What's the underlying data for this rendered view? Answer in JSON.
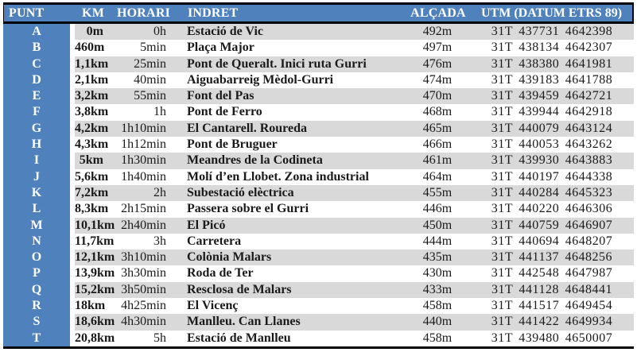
{
  "table": {
    "columns": {
      "punt": {
        "label": "PUNT"
      },
      "km": {
        "label": "KM"
      },
      "horari": {
        "label": "HORARI"
      },
      "indret": {
        "label": "INDRET"
      },
      "alcada": {
        "label": "ALÇADA"
      },
      "utm": {
        "label": "UTM (DATUM ETRS 89)"
      }
    },
    "rows": [
      {
        "punt": "A",
        "km": "0m",
        "horari": "0h",
        "indret": "Estació de Vic",
        "alcada": "492m",
        "utm": "31T 437731 4642398"
      },
      {
        "punt": "B",
        "km": "460m",
        "horari": "5min",
        "indret": "Plaça Major",
        "alcada": "497m",
        "utm": "31T 438134 4642307"
      },
      {
        "punt": "C",
        "km": "1,1km",
        "horari": "25min",
        "indret": "Pont de Queralt. Inici ruta Gurri",
        "alcada": "476m",
        "utm": "31T 438380 4641981"
      },
      {
        "punt": "D",
        "km": "2,1km",
        "horari": "40min",
        "indret": "Aiguabarreig Mèdol-Gurri",
        "alcada": "474m",
        "utm": "31T 439183 4641788"
      },
      {
        "punt": "E",
        "km": "3,2km",
        "horari": "55min",
        "indret": "Font del Pas",
        "alcada": "470m",
        "utm": "31T 439459 4642721"
      },
      {
        "punt": "F",
        "km": "3,8km",
        "horari": "1h",
        "indret": "Pont de Ferro",
        "alcada": "468m",
        "utm": "31T 439944 4642918"
      },
      {
        "punt": "G",
        "km": "4,2km",
        "horari": "1h10min",
        "indret": "El Cantarell. Roureda",
        "alcada": "465m",
        "utm": "31T 440079 4643124"
      },
      {
        "punt": "H",
        "km": "4,3km",
        "horari": "1h12min",
        "indret": "Pont de Bruguer",
        "alcada": "466m",
        "utm": "31T 440053 4643262"
      },
      {
        "punt": "I",
        "km": "5km",
        "horari": "1h30min",
        "indret": "Meandres de la Codineta",
        "alcada": "461m",
        "utm": "31T 439930 4643883"
      },
      {
        "punt": "J",
        "km": "5,6km",
        "horari": "1h40min",
        "indret": "Molí d’en Llobet. Zona industrial",
        "alcada": "464m",
        "utm": "31T 440197 4644338"
      },
      {
        "punt": "K",
        "km": "7,2km",
        "horari": "2h",
        "indret": "Subestació elèctrica",
        "alcada": "455m",
        "utm": "31T 440284 4645323"
      },
      {
        "punt": "L",
        "km": "8,3km",
        "horari": "2h15min",
        "indret": "Passera sobre el Gurri",
        "alcada": "446m",
        "utm": "31T 440220 4646306"
      },
      {
        "punt": "M",
        "km": "10,1km",
        "horari": "2h40min",
        "indret": "El Picó",
        "alcada": "450m",
        "utm": "31T 440759 4646907"
      },
      {
        "punt": "N",
        "km": "11,7km",
        "horari": "3h",
        "indret": "Carretera",
        "alcada": "444m",
        "utm": "31T 440694 4648207"
      },
      {
        "punt": "O",
        "km": "12,1km",
        "horari": "3h10min",
        "indret": "Colònia Malars",
        "alcada": "435m",
        "utm": "31T 441137 4648256"
      },
      {
        "punt": "P",
        "km": "13,9km",
        "horari": "3h30min",
        "indret": "Roda de Ter",
        "alcada": "430m",
        "utm": "31T 442548 4647987"
      },
      {
        "punt": "Q",
        "km": "15,2km",
        "horari": "3h50min",
        "indret": "Resclosa de Malars",
        "alcada": "433m",
        "utm": "31T 441128 4648441"
      },
      {
        "punt": "R",
        "km": "18km",
        "horari": "4h25min",
        "indret": "El Vicenç",
        "alcada": "458m",
        "utm": "31T 441517 4649454"
      },
      {
        "punt": "S",
        "km": "18,6km",
        "horari": "4h30min",
        "indret": "Manlleu. Can Llanes",
        "alcada": "440m",
        "utm": "31T 441422 4649934"
      },
      {
        "punt": "T",
        "km": "20,8km",
        "horari": "5h",
        "indret": "Estació de Manlleu",
        "alcada": "458m",
        "utm": "31T 439480 4650007"
      }
    ]
  },
  "colors": {
    "header_blue": "#4F81BD",
    "stripe_gray": "#D9D9D9",
    "border_black": "#000000",
    "header_text": "#FFFFFF"
  }
}
